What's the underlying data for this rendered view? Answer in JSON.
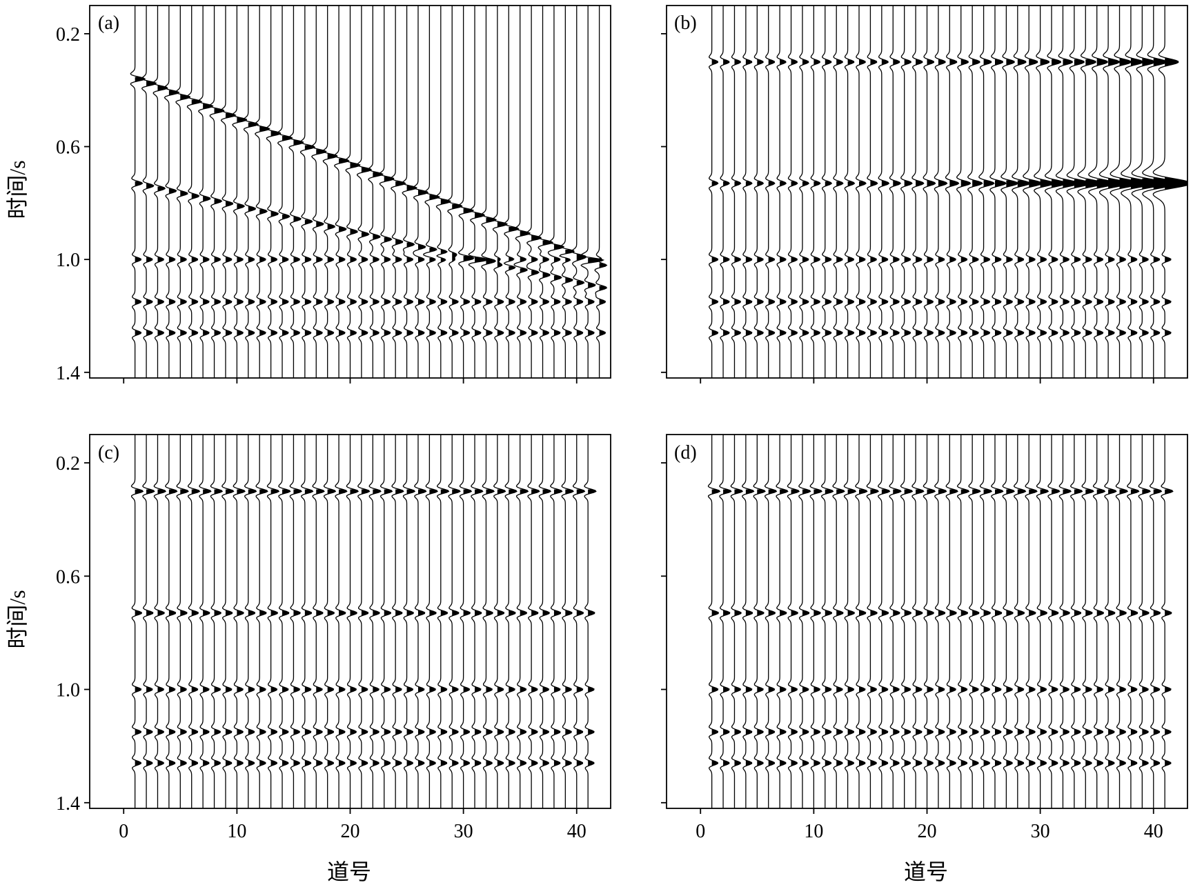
{
  "figure": {
    "ylabel": "时间/s",
    "xlabel": "道号",
    "colors": {
      "trace": "#000000",
      "fill": "#000000",
      "frame": "#000000",
      "background": "#ffffff"
    }
  },
  "chart_data": [
    {
      "panel": "(a)",
      "type": "seismic-wiggle",
      "description_events": [
        {
          "kind": "linear",
          "t_at_trace1": 0.36,
          "t_at_trace42": 1.02,
          "amplitude": 1.6
        },
        {
          "kind": "linear",
          "t_at_trace1": 0.73,
          "t_at_trace42": 1.1,
          "amplitude": 1.2
        },
        {
          "kind": "flat",
          "t": 1.0,
          "amplitude": 1.0
        },
        {
          "kind": "flat",
          "t": 1.15,
          "amplitude": 1.0
        },
        {
          "kind": "flat",
          "t": 1.26,
          "amplitude": 1.0
        }
      ],
      "traces": {
        "first": 1,
        "last": 42
      },
      "xlim": [
        -3,
        43
      ],
      "ylim": [
        1.42,
        0.1
      ],
      "xticks": [
        0,
        10,
        20,
        30,
        40
      ],
      "yticks": [
        0.2,
        0.6,
        1.0,
        1.4
      ],
      "ytick_labels": [
        "0.2",
        "0.6",
        "1.0",
        "1.4"
      ],
      "show_xtick_labels": false,
      "show_ylabel": true,
      "show_xlabel": false
    },
    {
      "panel": "(b)",
      "type": "seismic-wiggle",
      "description_events": [
        {
          "kind": "flat",
          "t": 0.3,
          "amplitude": 1.0,
          "growth": "increasing with trace"
        },
        {
          "kind": "flat",
          "t": 0.73,
          "amplitude": 1.0,
          "growth": "strongly increasing toward traces 30-42"
        },
        {
          "kind": "flat",
          "t": 1.0,
          "amplitude": 1.0
        },
        {
          "kind": "flat",
          "t": 1.15,
          "amplitude": 1.0
        },
        {
          "kind": "flat",
          "t": 1.26,
          "amplitude": 1.0
        }
      ],
      "traces": {
        "first": 1,
        "last": 41
      },
      "xlim": [
        -3,
        43
      ],
      "ylim": [
        1.42,
        0.1
      ],
      "xticks": [
        0,
        10,
        20,
        30,
        40
      ],
      "yticks": [
        0.2,
        0.6,
        1.0,
        1.4
      ],
      "ytick_labels": [],
      "show_xtick_labels": false,
      "show_ylabel": false,
      "show_xlabel": false
    },
    {
      "panel": "(c)",
      "type": "seismic-wiggle",
      "description_events": [
        {
          "kind": "flat",
          "t": 0.3,
          "amplitude": 1.3
        },
        {
          "kind": "flat",
          "t": 0.73,
          "amplitude": 1.1
        },
        {
          "kind": "flat",
          "t": 1.0,
          "amplitude": 1.0
        },
        {
          "kind": "flat",
          "t": 1.15,
          "amplitude": 1.0
        },
        {
          "kind": "flat",
          "t": 1.26,
          "amplitude": 1.0
        }
      ],
      "traces": {
        "first": 1,
        "last": 41
      },
      "xlim": [
        -3,
        43
      ],
      "ylim": [
        1.42,
        0.1
      ],
      "xticks": [
        0,
        10,
        20,
        30,
        40
      ],
      "xtick_labels": [
        "0",
        "10",
        "20",
        "30",
        "40"
      ],
      "yticks": [
        0.2,
        0.6,
        1.0,
        1.4
      ],
      "ytick_labels": [
        "0.2",
        "0.6",
        "1.0",
        "1.4"
      ],
      "show_xtick_labels": true,
      "show_ylabel": true,
      "show_xlabel": true
    },
    {
      "panel": "(d)",
      "type": "seismic-wiggle",
      "description_events": [
        {
          "kind": "flat",
          "t": 0.3,
          "amplitude": 1.3
        },
        {
          "kind": "flat",
          "t": 0.73,
          "amplitude": 1.1
        },
        {
          "kind": "flat",
          "t": 1.0,
          "amplitude": 1.0
        },
        {
          "kind": "flat",
          "t": 1.15,
          "amplitude": 1.0
        },
        {
          "kind": "flat",
          "t": 1.26,
          "amplitude": 1.0
        }
      ],
      "traces": {
        "first": 1,
        "last": 41
      },
      "xlim": [
        -3,
        43
      ],
      "ylim": [
        1.42,
        0.1
      ],
      "xticks": [
        0,
        10,
        20,
        30,
        40
      ],
      "xtick_labels": [
        "0",
        "10",
        "20",
        "30",
        "40"
      ],
      "yticks": [
        0.2,
        0.6,
        1.0,
        1.4
      ],
      "ytick_labels": [],
      "show_xtick_labels": true,
      "show_ylabel": false,
      "show_xlabel": true
    }
  ]
}
